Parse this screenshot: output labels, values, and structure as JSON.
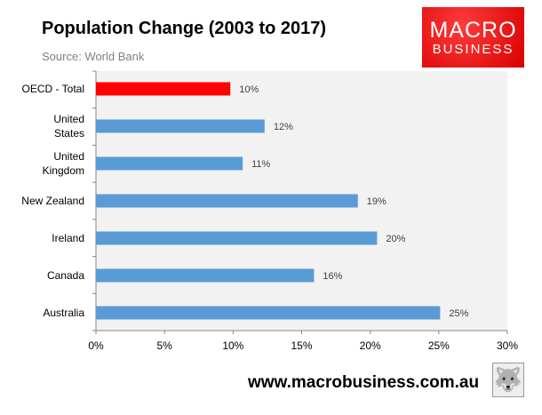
{
  "chart_data": {
    "type": "bar",
    "orientation": "horizontal",
    "title": "Population Change (2003 to 2017)",
    "subtitle": "Source: World Bank",
    "categories": [
      "OECD - Total",
      "United States",
      "United Kingdom",
      "New Zealand",
      "Ireland",
      "Canada",
      "Australia"
    ],
    "category_lines": [
      [
        "OECD - Total"
      ],
      [
        "United",
        "States"
      ],
      [
        "United",
        "Kingdom"
      ],
      [
        "New Zealand"
      ],
      [
        "Ireland"
      ],
      [
        "Canada"
      ],
      [
        "Australia"
      ]
    ],
    "values": [
      9.8,
      12.3,
      10.7,
      19.1,
      20.5,
      15.9,
      25.1
    ],
    "data_labels": [
      "10%",
      "12%",
      "11%",
      "19%",
      "20%",
      "16%",
      "25%"
    ],
    "colors": [
      "#ff0000",
      "#5b9bd5",
      "#5b9bd5",
      "#5b9bd5",
      "#5b9bd5",
      "#5b9bd5",
      "#5b9bd5"
    ],
    "xlim": [
      0,
      30
    ],
    "xticks": [
      0,
      5,
      10,
      15,
      20,
      25,
      30
    ],
    "xtick_labels": [
      "0%",
      "5%",
      "10%",
      "15%",
      "20%",
      "25%",
      "30%"
    ],
    "xlabel": "",
    "ylabel": "",
    "grid": false,
    "legend": "none"
  },
  "logo": {
    "line1": "MACRO",
    "line2": "BUSINESS"
  },
  "footer": {
    "url": "www.macrobusiness.com.au"
  }
}
